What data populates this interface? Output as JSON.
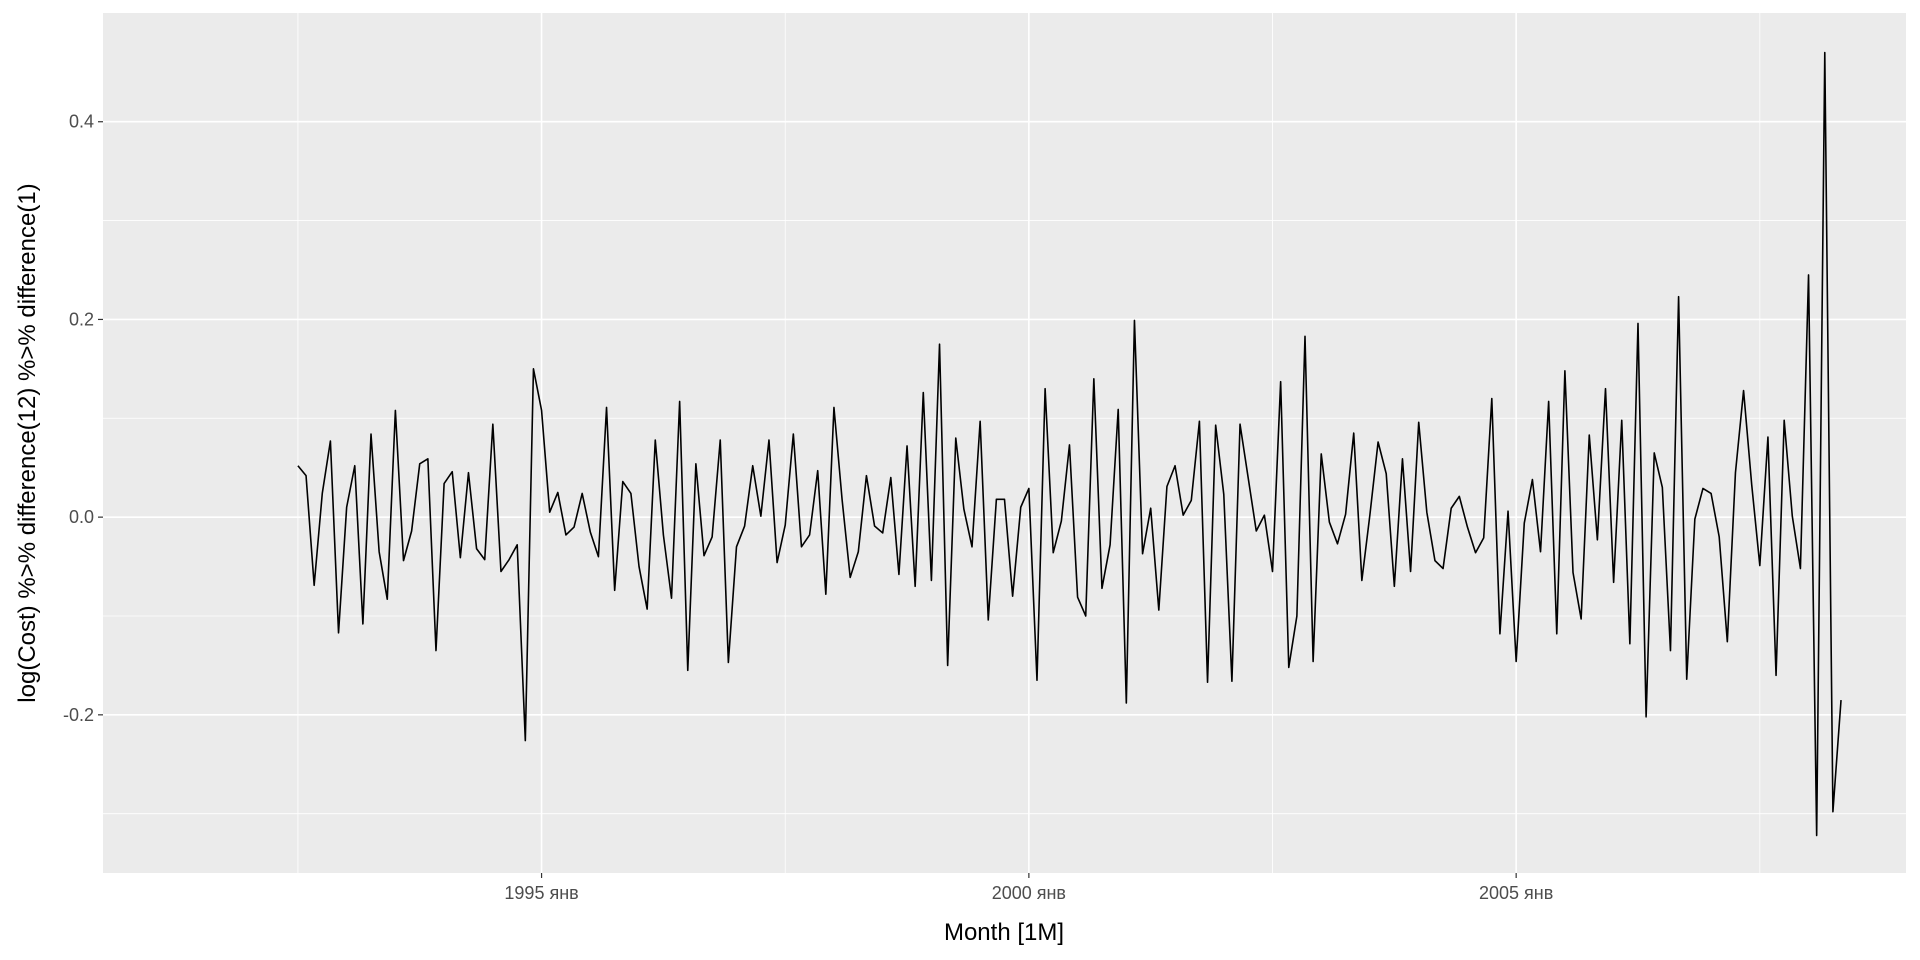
{
  "chart_data": {
    "type": "line",
    "title": "",
    "xlabel": "Month [1M]",
    "ylabel": "log(Cost) %>% difference(12) %>% difference(1)",
    "x_start": "1992-07",
    "x_end": "2008-06",
    "xlim": [
      "1990-07",
      "2009-01"
    ],
    "ylim": [
      -0.36,
      0.51
    ],
    "x_ticks": [
      {
        "date": "1995-01",
        "label": "1995 янв"
      },
      {
        "date": "2000-01",
        "label": "2000 янв"
      },
      {
        "date": "2005-01",
        "label": "2005 янв"
      }
    ],
    "x_minor_ticks": [
      "1992-07",
      "1997-07",
      "2002-07",
      "2007-07"
    ],
    "y_ticks": [
      -0.2,
      0.0,
      0.2,
      0.4
    ],
    "y_tick_labels": [
      "-0.2",
      "0.0",
      "0.2",
      "0.4"
    ],
    "y_minor_ticks": [
      -0.3,
      -0.1,
      0.1,
      0.3
    ],
    "grid": true,
    "legend": "none",
    "colors": {
      "line": "#000000",
      "panel": "#ebebeb",
      "grid": "#ffffff",
      "tick_text": "#4d4d4d"
    },
    "series": [
      {
        "values": [
          0.052,
          0.042,
          -0.069,
          0.024,
          0.077,
          -0.117,
          0.01,
          0.052,
          -0.108,
          0.084,
          -0.035,
          -0.083,
          0.108,
          -0.044,
          -0.014,
          0.054,
          0.059,
          -0.135,
          0.034,
          0.046,
          -0.041,
          0.045,
          -0.032,
          -0.043,
          0.094,
          -0.055,
          -0.043,
          -0.028,
          -0.226,
          0.15,
          0.108,
          0.005,
          0.025,
          -0.018,
          -0.01,
          0.024,
          -0.015,
          -0.04,
          0.111,
          -0.074,
          0.036,
          0.024,
          -0.05,
          -0.093,
          0.078,
          -0.018,
          -0.082,
          0.117,
          -0.155,
          0.054,
          -0.039,
          -0.02,
          0.078,
          -0.147,
          -0.03,
          -0.009,
          0.052,
          0.001,
          0.078,
          -0.046,
          -0.008,
          0.084,
          -0.03,
          -0.018,
          0.047,
          -0.078,
          0.111,
          0.018,
          -0.061,
          -0.035,
          0.042,
          -0.009,
          -0.016,
          0.04,
          -0.058,
          0.072,
          -0.07,
          0.126,
          -0.064,
          0.175,
          -0.15,
          0.08,
          0.008,
          -0.03,
          0.097,
          -0.104,
          0.018,
          0.018,
          -0.08,
          0.01,
          0.029,
          -0.165,
          0.13,
          -0.036,
          -0.004,
          0.073,
          -0.081,
          -0.1,
          0.14,
          -0.072,
          -0.028,
          0.109,
          -0.188,
          0.199,
          -0.037,
          0.009,
          -0.094,
          0.031,
          0.052,
          0.002,
          0.017,
          0.097,
          -0.167,
          0.093,
          0.023,
          -0.166,
          0.094,
          0.04,
          -0.014,
          0.002,
          -0.055,
          0.137,
          -0.152,
          -0.1,
          0.183,
          -0.146,
          0.064,
          -0.005,
          -0.027,
          0.003,
          0.085,
          -0.064,
          0.003,
          0.076,
          0.044,
          -0.07,
          0.059,
          -0.055,
          0.096,
          0.005,
          -0.044,
          -0.052,
          0.009,
          0.021,
          -0.01,
          -0.036,
          -0.021,
          0.12,
          -0.118,
          0.006,
          -0.146,
          -0.006,
          0.038,
          -0.035,
          0.117,
          -0.118,
          0.148,
          -0.056,
          -0.103,
          0.083,
          -0.023,
          0.13,
          -0.066,
          0.098,
          -0.128,
          0.196,
          -0.202,
          0.065,
          0.03,
          -0.135,
          0.223,
          -0.164,
          -0.002,
          0.029,
          0.024,
          -0.02,
          -0.126,
          0.045,
          0.128,
          0.033,
          -0.049,
          0.081,
          -0.16,
          0.098,
          0.001,
          -0.052,
          0.245,
          -0.322,
          0.47,
          -0.298,
          -0.185
        ]
      }
    ]
  }
}
